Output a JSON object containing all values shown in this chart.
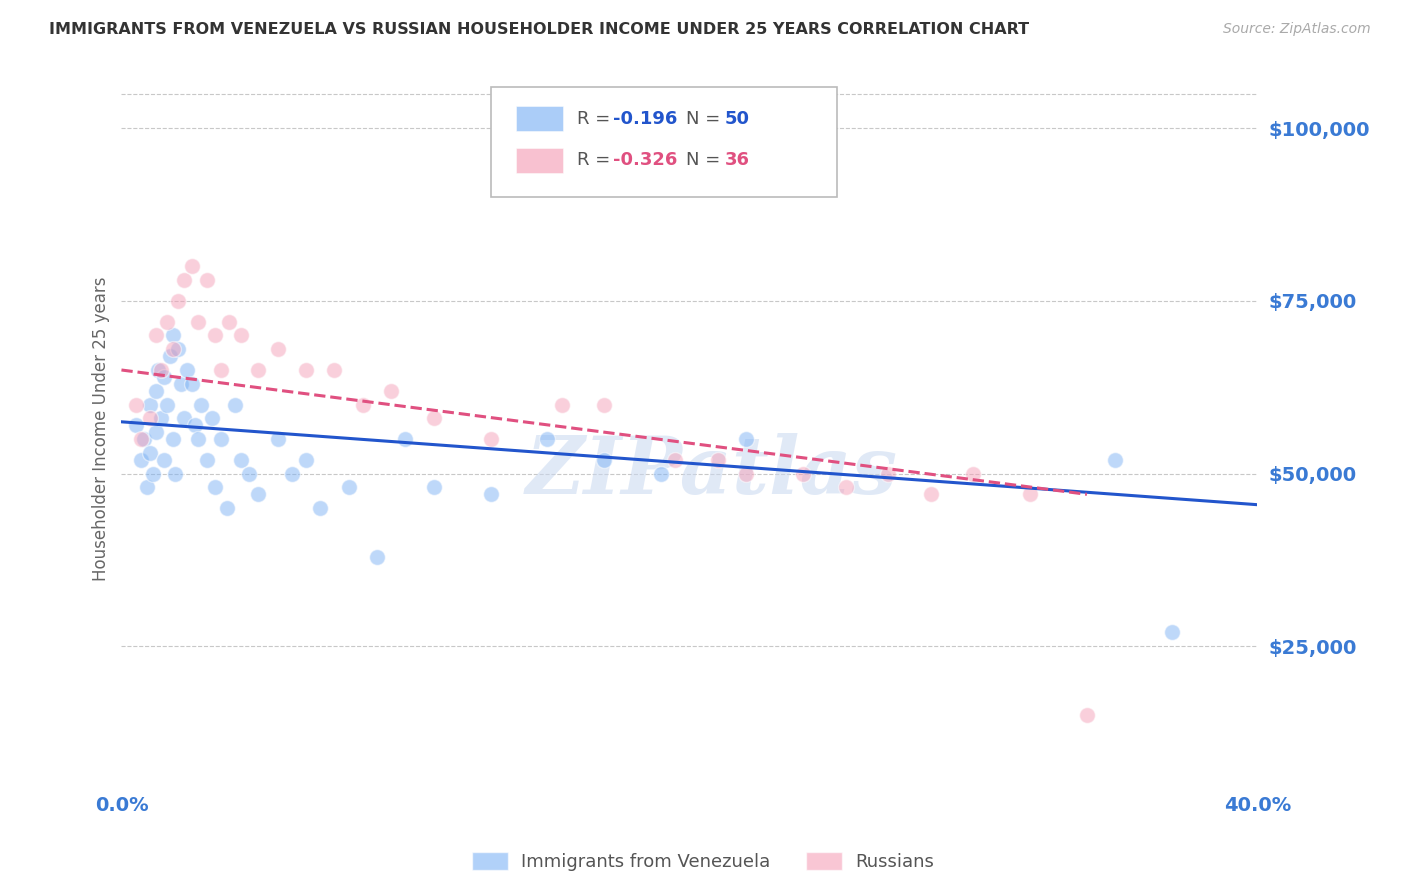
{
  "title": "IMMIGRANTS FROM VENEZUELA VS RUSSIAN HOUSEHOLDER INCOME UNDER 25 YEARS CORRELATION CHART",
  "source": "Source: ZipAtlas.com",
  "ylabel": "Householder Income Under 25 years",
  "ytick_labels": [
    "$25,000",
    "$50,000",
    "$75,000",
    "$100,000"
  ],
  "ytick_values": [
    25000,
    50000,
    75000,
    100000
  ],
  "ymin": 5000,
  "ymax": 108000,
  "xmin": 0.0,
  "xmax": 0.4,
  "watermark": "ZIPatlas",
  "blue_R": -0.196,
  "blue_N": 50,
  "pink_R": -0.326,
  "pink_N": 36,
  "blue_scatter_x": [
    0.005,
    0.007,
    0.008,
    0.009,
    0.01,
    0.01,
    0.011,
    0.012,
    0.012,
    0.013,
    0.014,
    0.015,
    0.015,
    0.016,
    0.017,
    0.018,
    0.018,
    0.019,
    0.02,
    0.021,
    0.022,
    0.023,
    0.025,
    0.026,
    0.027,
    0.028,
    0.03,
    0.032,
    0.033,
    0.035,
    0.037,
    0.04,
    0.042,
    0.045,
    0.048,
    0.055,
    0.06,
    0.065,
    0.07,
    0.08,
    0.09,
    0.1,
    0.11,
    0.13,
    0.15,
    0.17,
    0.19,
    0.22,
    0.35,
    0.37
  ],
  "blue_scatter_y": [
    57000,
    52000,
    55000,
    48000,
    53000,
    60000,
    50000,
    56000,
    62000,
    65000,
    58000,
    64000,
    52000,
    60000,
    67000,
    70000,
    55000,
    50000,
    68000,
    63000,
    58000,
    65000,
    63000,
    57000,
    55000,
    60000,
    52000,
    58000,
    48000,
    55000,
    45000,
    60000,
    52000,
    50000,
    47000,
    55000,
    50000,
    52000,
    45000,
    48000,
    38000,
    55000,
    48000,
    47000,
    55000,
    52000,
    50000,
    55000,
    52000,
    27000
  ],
  "pink_scatter_x": [
    0.005,
    0.007,
    0.01,
    0.012,
    0.014,
    0.016,
    0.018,
    0.02,
    0.022,
    0.025,
    0.027,
    0.03,
    0.033,
    0.035,
    0.038,
    0.042,
    0.048,
    0.055,
    0.065,
    0.075,
    0.085,
    0.095,
    0.11,
    0.13,
    0.155,
    0.17,
    0.195,
    0.21,
    0.22,
    0.24,
    0.255,
    0.27,
    0.285,
    0.3,
    0.32,
    0.34
  ],
  "pink_scatter_y": [
    60000,
    55000,
    58000,
    70000,
    65000,
    72000,
    68000,
    75000,
    78000,
    80000,
    72000,
    78000,
    70000,
    65000,
    72000,
    70000,
    65000,
    68000,
    65000,
    65000,
    60000,
    62000,
    58000,
    55000,
    60000,
    60000,
    52000,
    52000,
    50000,
    50000,
    48000,
    50000,
    47000,
    50000,
    47000,
    15000
  ],
  "blue_line_x": [
    0.0,
    0.4
  ],
  "blue_line_y": [
    57500,
    45500
  ],
  "pink_line_x": [
    0.0,
    0.34
  ],
  "pink_line_y": [
    65000,
    47000
  ],
  "blue_color": "#7eb3f5",
  "pink_color": "#f5a0b8",
  "blue_line_color": "#2255cc",
  "pink_line_color": "#e05080",
  "background_color": "#ffffff",
  "grid_color": "#c8c8c8",
  "axis_label_color": "#3a7ad4",
  "title_color": "#333333",
  "marker_size": 130,
  "marker_alpha": 0.5,
  "line_width": 2.2
}
